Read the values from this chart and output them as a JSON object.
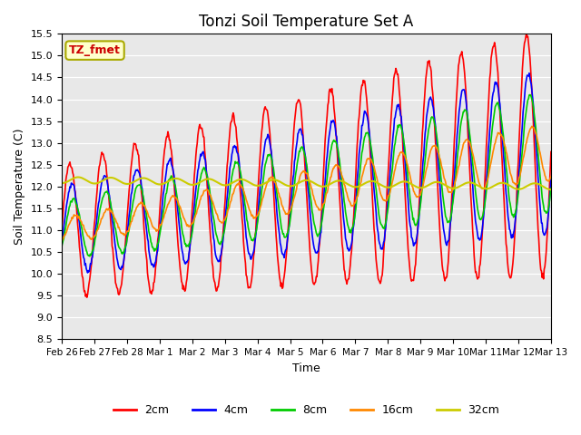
{
  "title": "Tonzi Soil Temperature Set A",
  "xlabel": "Time",
  "ylabel": "Soil Temperature (C)",
  "ylim": [
    8.5,
    15.5
  ],
  "yticks": [
    8.5,
    9.0,
    9.5,
    10.0,
    10.5,
    11.0,
    11.5,
    12.0,
    12.5,
    13.0,
    13.5,
    14.0,
    14.5,
    15.0,
    15.5
  ],
  "x_tick_labels": [
    "Feb 26",
    "Feb 27",
    "Feb 28",
    "Mar 1",
    "Mar 2",
    "Mar 3",
    "Mar 4",
    "Mar 5",
    "Mar 6",
    "Mar 7",
    "Mar 8",
    "Mar 9",
    "Mar 10",
    "Mar 11",
    "Mar 12",
    "Mar 13"
  ],
  "line_colors": {
    "2cm": "#ff0000",
    "4cm": "#0000ff",
    "8cm": "#00cc00",
    "16cm": "#ff8800",
    "32cm": "#cccc00"
  },
  "legend_labels": [
    "2cm",
    "4cm",
    "8cm",
    "16cm",
    "32cm"
  ],
  "annotation_text": "TZ_fmet",
  "annotation_color": "#cc0000",
  "annotation_bg": "#ffffcc",
  "background_color": "#e8e8e8",
  "n_days": 15,
  "points_per_day": 48
}
